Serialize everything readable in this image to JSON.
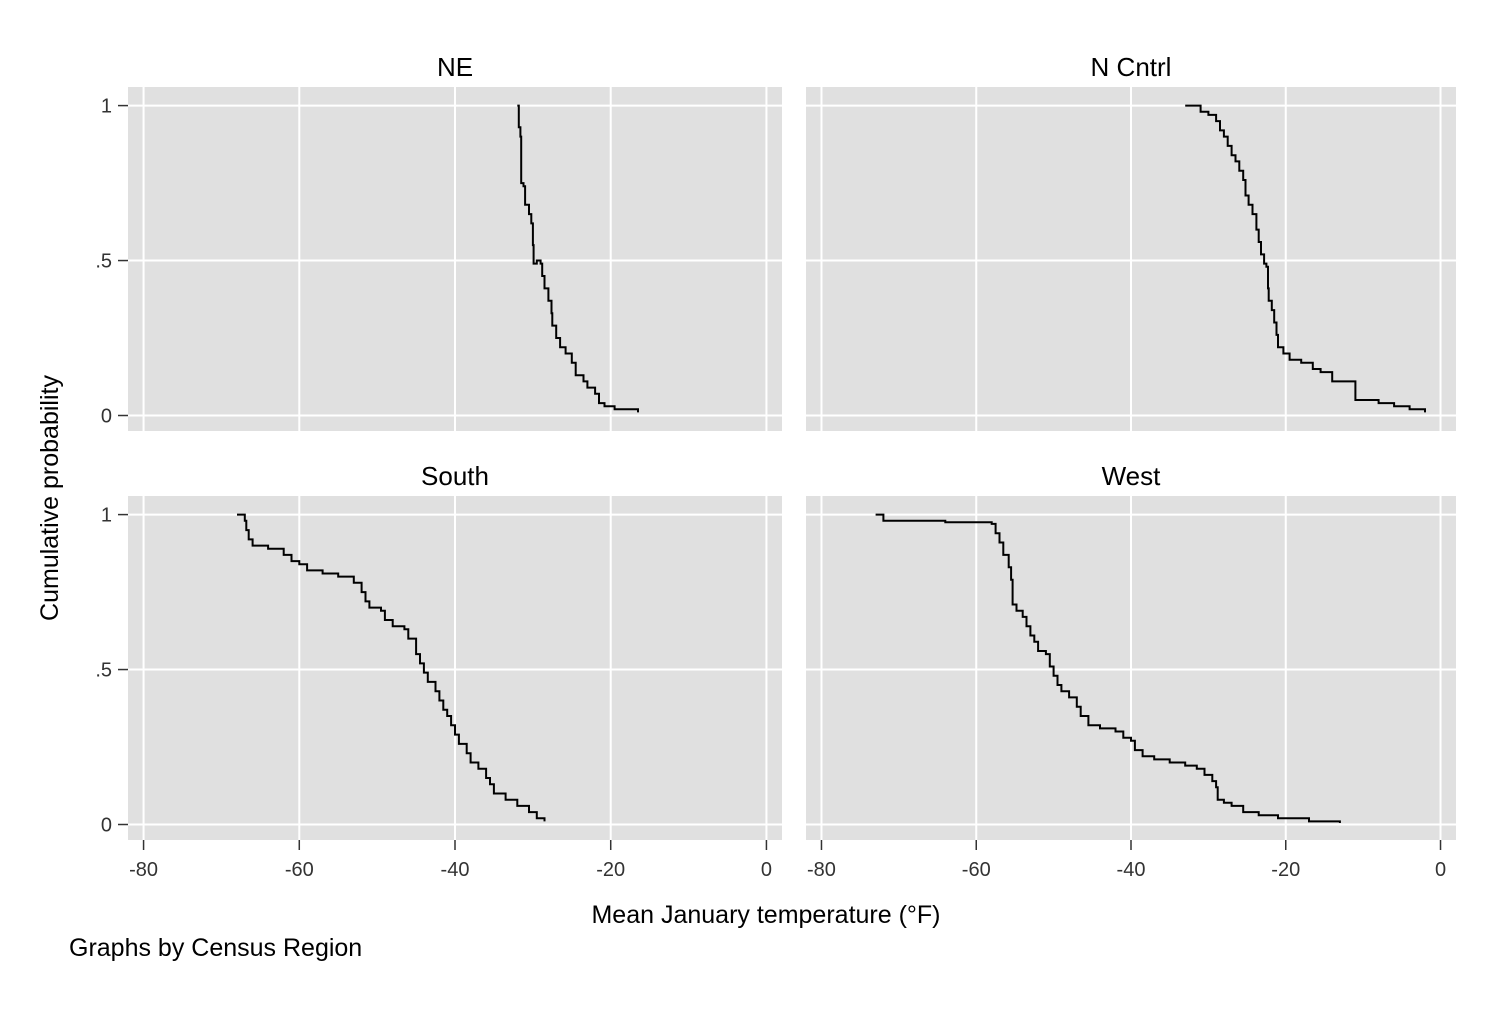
{
  "chart_data": {
    "type": "line",
    "layout": "2x2 small multiples",
    "xlabel": "Mean January temperature (°F)",
    "ylabel": "Cumulative probability",
    "note": "Graphs by Census Region",
    "xlim": [
      -82,
      2
    ],
    "ylim": [
      -0.05,
      1.06
    ],
    "x_ticks": [
      {
        "value": -80,
        "label": "-80"
      },
      {
        "value": -60,
        "label": "-60"
      },
      {
        "value": -40,
        "label": "-40"
      },
      {
        "value": -20,
        "label": "-20"
      },
      {
        "value": 0,
        "label": "0"
      }
    ],
    "y_ticks": [
      {
        "value": 0,
        "label": "0"
      },
      {
        "value": 0.5,
        "label": ".5"
      },
      {
        "value": 1,
        "label": "1"
      }
    ],
    "grid": true,
    "line_color": "#000000",
    "panel_background": "#e0e0e0",
    "gridline_color": "#ffffff",
    "panels": [
      {
        "title": "NE",
        "points": [
          [
            -32,
            1.0
          ],
          [
            -31.8,
            0.93
          ],
          [
            -31.6,
            0.9
          ],
          [
            -31.5,
            0.75
          ],
          [
            -31.2,
            0.74
          ],
          [
            -31,
            0.68
          ],
          [
            -30.5,
            0.65
          ],
          [
            -30.2,
            0.62
          ],
          [
            -30,
            0.55
          ],
          [
            -29.9,
            0.49
          ],
          [
            -29.5,
            0.5
          ],
          [
            -29,
            0.49
          ],
          [
            -28.8,
            0.45
          ],
          [
            -28.5,
            0.41
          ],
          [
            -28,
            0.37
          ],
          [
            -27.6,
            0.33
          ],
          [
            -27.5,
            0.29
          ],
          [
            -27,
            0.25
          ],
          [
            -26.5,
            0.22
          ],
          [
            -25.8,
            0.2
          ],
          [
            -25,
            0.17
          ],
          [
            -24.5,
            0.13
          ],
          [
            -23.5,
            0.11
          ],
          [
            -23,
            0.09
          ],
          [
            -22,
            0.07
          ],
          [
            -21.5,
            0.04
          ],
          [
            -20.8,
            0.03
          ],
          [
            -19.5,
            0.02
          ],
          [
            -16.5,
            0.01
          ]
        ]
      },
      {
        "title": "N Cntrl",
        "points": [
          [
            -33,
            1.0
          ],
          [
            -31,
            0.98
          ],
          [
            -30,
            0.97
          ],
          [
            -29,
            0.95
          ],
          [
            -28.5,
            0.92
          ],
          [
            -28,
            0.9
          ],
          [
            -27.5,
            0.87
          ],
          [
            -27,
            0.84
          ],
          [
            -26.5,
            0.82
          ],
          [
            -26,
            0.79
          ],
          [
            -25.5,
            0.76
          ],
          [
            -25.2,
            0.71
          ],
          [
            -24.8,
            0.68
          ],
          [
            -24.3,
            0.65
          ],
          [
            -23.8,
            0.6
          ],
          [
            -23.5,
            0.56
          ],
          [
            -23.2,
            0.52
          ],
          [
            -22.8,
            0.49
          ],
          [
            -22.5,
            0.48
          ],
          [
            -22.3,
            0.41
          ],
          [
            -22.2,
            0.37
          ],
          [
            -21.8,
            0.34
          ],
          [
            -21.5,
            0.3
          ],
          [
            -21.2,
            0.26
          ],
          [
            -21,
            0.22
          ],
          [
            -20.3,
            0.2
          ],
          [
            -19.5,
            0.18
          ],
          [
            -18,
            0.17
          ],
          [
            -16.5,
            0.15
          ],
          [
            -15.5,
            0.14
          ],
          [
            -14,
            0.11
          ],
          [
            -12,
            0.11
          ],
          [
            -11,
            0.05
          ],
          [
            -8,
            0.04
          ],
          [
            -6,
            0.03
          ],
          [
            -4,
            0.02
          ],
          [
            -2,
            0.01
          ]
        ]
      },
      {
        "title": "South",
        "points": [
          [
            -68,
            1.0
          ],
          [
            -67,
            0.98
          ],
          [
            -66.8,
            0.95
          ],
          [
            -66.5,
            0.92
          ],
          [
            -66,
            0.9
          ],
          [
            -64,
            0.89
          ],
          [
            -62,
            0.87
          ],
          [
            -61,
            0.85
          ],
          [
            -60,
            0.84
          ],
          [
            -59,
            0.82
          ],
          [
            -57,
            0.81
          ],
          [
            -55,
            0.8
          ],
          [
            -53.5,
            0.8
          ],
          [
            -53,
            0.78
          ],
          [
            -52,
            0.75
          ],
          [
            -51.5,
            0.72
          ],
          [
            -51,
            0.7
          ],
          [
            -49.5,
            0.69
          ],
          [
            -49,
            0.66
          ],
          [
            -48,
            0.64
          ],
          [
            -46.5,
            0.63
          ],
          [
            -46,
            0.6
          ],
          [
            -45,
            0.55
          ],
          [
            -44.5,
            0.52
          ],
          [
            -44,
            0.49
          ],
          [
            -43.5,
            0.46
          ],
          [
            -42.5,
            0.43
          ],
          [
            -42,
            0.4
          ],
          [
            -41.5,
            0.37
          ],
          [
            -41,
            0.35
          ],
          [
            -40.5,
            0.32
          ],
          [
            -40,
            0.29
          ],
          [
            -39.5,
            0.26
          ],
          [
            -38.5,
            0.23
          ],
          [
            -38,
            0.2
          ],
          [
            -37,
            0.18
          ],
          [
            -36,
            0.15
          ],
          [
            -35.5,
            0.13
          ],
          [
            -35,
            0.1
          ],
          [
            -33.5,
            0.08
          ],
          [
            -32,
            0.06
          ],
          [
            -30.5,
            0.04
          ],
          [
            -29.5,
            0.02
          ],
          [
            -28.5,
            0.01
          ]
        ]
      },
      {
        "title": "West",
        "points": [
          [
            -73,
            1.0
          ],
          [
            -72,
            0.98
          ],
          [
            -71,
            0.98
          ],
          [
            -64,
            0.975
          ],
          [
            -58,
            0.97
          ],
          [
            -57.5,
            0.94
          ],
          [
            -57,
            0.91
          ],
          [
            -56.5,
            0.87
          ],
          [
            -55.8,
            0.83
          ],
          [
            -55.5,
            0.79
          ],
          [
            -55.3,
            0.71
          ],
          [
            -54.8,
            0.69
          ],
          [
            -54,
            0.67
          ],
          [
            -53.5,
            0.64
          ],
          [
            -53,
            0.61
          ],
          [
            -52.5,
            0.59
          ],
          [
            -52,
            0.56
          ],
          [
            -51,
            0.55
          ],
          [
            -50.5,
            0.51
          ],
          [
            -50,
            0.48
          ],
          [
            -49.5,
            0.45
          ],
          [
            -49,
            0.43
          ],
          [
            -48,
            0.41
          ],
          [
            -47,
            0.38
          ],
          [
            -46.5,
            0.35
          ],
          [
            -45.5,
            0.32
          ],
          [
            -44,
            0.31
          ],
          [
            -42,
            0.3
          ],
          [
            -41,
            0.28
          ],
          [
            -40,
            0.27
          ],
          [
            -39.5,
            0.24
          ],
          [
            -38.5,
            0.22
          ],
          [
            -37,
            0.21
          ],
          [
            -35,
            0.2
          ],
          [
            -33,
            0.19
          ],
          [
            -31.5,
            0.18
          ],
          [
            -30.5,
            0.16
          ],
          [
            -29.5,
            0.14
          ],
          [
            -29,
            0.12
          ],
          [
            -28.8,
            0.08
          ],
          [
            -28,
            0.07
          ],
          [
            -27,
            0.06
          ],
          [
            -25.5,
            0.04
          ],
          [
            -23.5,
            0.03
          ],
          [
            -21,
            0.02
          ],
          [
            -17,
            0.01
          ],
          [
            -13,
            0.005
          ]
        ]
      }
    ]
  }
}
